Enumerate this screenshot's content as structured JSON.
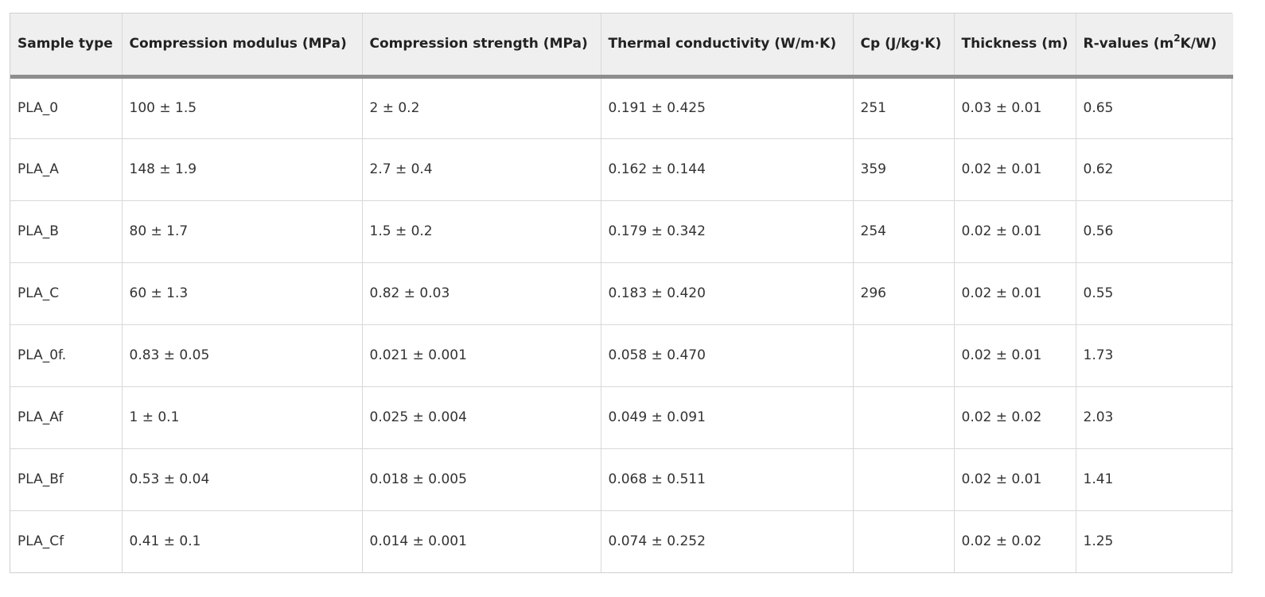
{
  "table": {
    "headers": [
      "Sample type",
      "Compression modulus (MPa)",
      "Compression strength (MPa)",
      "Thermal conductivity (W/m·K)",
      "Cp (J/kg·K)",
      "Thickness (m)"
    ],
    "r_header": {
      "prefix": "R-values (m",
      "sup": "2",
      "suffix": "K/W)"
    },
    "rows": [
      [
        "PLA_0",
        "100 ± 1.5",
        "2 ± 0.2",
        "0.191 ± 0.425",
        "251",
        "0.03 ± 0.01",
        "0.65"
      ],
      [
        "PLA_A",
        "148 ± 1.9",
        "2.7 ± 0.4",
        "0.162 ± 0.144",
        "359",
        "0.02 ± 0.01",
        "0.62"
      ],
      [
        "PLA_B",
        "80 ± 1.7",
        "1.5 ± 0.2",
        "0.179 ± 0.342",
        "254",
        "0.02 ± 0.01",
        "0.56"
      ],
      [
        "PLA_C",
        "60 ± 1.3",
        "0.82 ± 0.03",
        "0.183 ± 0.420",
        "296",
        "0.02 ± 0.01",
        "0.55"
      ],
      [
        "PLA_0f.",
        "0.83 ± 0.05",
        "0.021 ± 0.001",
        "0.058 ± 0.470",
        "",
        "0.02 ± 0.01",
        "1.73"
      ],
      [
        "PLA_Af",
        "1 ± 0.1",
        "0.025 ± 0.004",
        "0.049 ± 0.091",
        "",
        "0.02 ± 0.02",
        "2.03"
      ],
      [
        "PLA_Bf",
        "0.53 ± 0.04",
        "0.018 ± 0.005",
        "0.068 ± 0.511",
        "",
        "0.02 ± 0.01",
        "1.41"
      ],
      [
        "PLA_Cf",
        "0.41 ± 0.1",
        "0.014 ± 0.001",
        "0.074 ± 0.252",
        "",
        "0.02 ± 0.02",
        "1.25"
      ]
    ]
  }
}
